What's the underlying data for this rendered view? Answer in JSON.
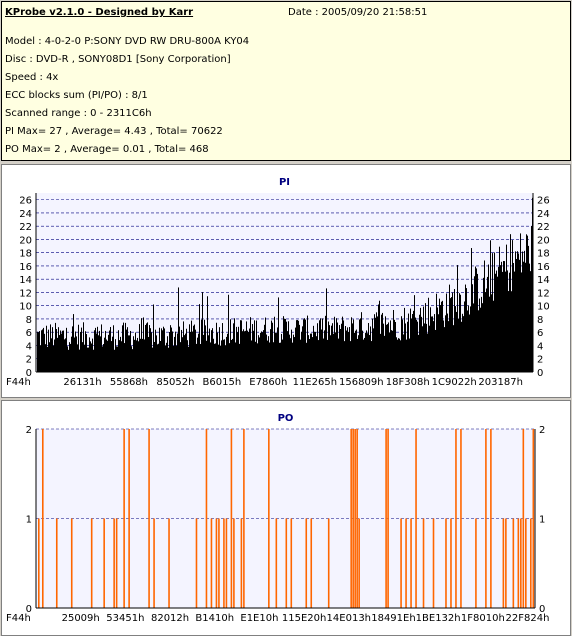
{
  "header": {
    "app_title": "KProbe v2.1.0 - Designed by Karr",
    "date": "Date : 2005/09/20 21:58:51",
    "lines": [
      "Model : 4-0-2-0 P:SONY    DVD RW DRU-800A  KY04",
      "Disc : DVD-R , SONY08D1 [Sony Corporation]",
      "Speed : 4x",
      "ECC blocks sum (PI/PO) : 8/1",
      "Scanned range : 0 - 2311C6h",
      "PI Max= 27 , Average= 4.43 , Total= 70622",
      "PO Max= 2 , Average= 0.01 , Total= 468"
    ]
  },
  "chart_data": [
    {
      "type": "bar",
      "title": "PI",
      "ylim": [
        0,
        27
      ],
      "yticks": [
        0,
        2,
        4,
        6,
        8,
        10,
        12,
        14,
        16,
        18,
        20,
        22,
        24,
        26
      ],
      "xticks": [
        "F44h",
        "26131h",
        "55868h",
        "85052h",
        "B6015h",
        "E7860h",
        "11E265h",
        "156809h",
        "18F308h",
        "1C9022h",
        "203187h"
      ],
      "bar_color": "#000000",
      "grid_color": "#000080",
      "profile": [
        {
          "x_frac": 0.0,
          "typical": 5,
          "spread": 3,
          "spike_max": 11
        },
        {
          "x_frac": 0.1,
          "typical": 5,
          "spread": 3,
          "spike_max": 12
        },
        {
          "x_frac": 0.25,
          "typical": 5,
          "spread": 3,
          "spike_max": 13
        },
        {
          "x_frac": 0.45,
          "typical": 6,
          "spread": 3,
          "spike_max": 12
        },
        {
          "x_frac": 0.6,
          "typical": 6,
          "spread": 3,
          "spike_max": 13
        },
        {
          "x_frac": 0.75,
          "typical": 7,
          "spread": 4,
          "spike_max": 15
        },
        {
          "x_frac": 0.85,
          "typical": 10,
          "spread": 5,
          "spike_max": 18
        },
        {
          "x_frac": 0.93,
          "typical": 14,
          "spread": 6,
          "spike_max": 23
        },
        {
          "x_frac": 1.0,
          "typical": 18,
          "spread": 6,
          "spike_max": 27
        }
      ]
    },
    {
      "type": "bar",
      "title": "PO",
      "ylim": [
        0,
        2
      ],
      "yticks": [
        0,
        1,
        2
      ],
      "xticks": [
        "F44h",
        "25009h",
        "53451h",
        "82012h",
        "B1410h",
        "E1E10h",
        "115E20h",
        "14E013h",
        "18491Eh",
        "1BE132h",
        "1F8010h",
        "22F824h"
      ],
      "bar_color": "#ff6600",
      "grid_color": "#000080",
      "bars": [
        {
          "x_frac": 0.004,
          "value": 1
        },
        {
          "x_frac": 0.012,
          "value": 2
        },
        {
          "x_frac": 0.04,
          "value": 1
        },
        {
          "x_frac": 0.07,
          "value": 1
        },
        {
          "x_frac": 0.11,
          "value": 1
        },
        {
          "x_frac": 0.135,
          "value": 1
        },
        {
          "x_frac": 0.16,
          "value": 1
        },
        {
          "x_frac": 0.155,
          "value": 1
        },
        {
          "x_frac": 0.175,
          "value": 2
        },
        {
          "x_frac": 0.185,
          "value": 2
        },
        {
          "x_frac": 0.225,
          "value": 2
        },
        {
          "x_frac": 0.235,
          "value": 1
        },
        {
          "x_frac": 0.265,
          "value": 1
        },
        {
          "x_frac": 0.32,
          "value": 1
        },
        {
          "x_frac": 0.34,
          "value": 2
        },
        {
          "x_frac": 0.35,
          "value": 1
        },
        {
          "x_frac": 0.36,
          "value": 1
        },
        {
          "x_frac": 0.365,
          "value": 1
        },
        {
          "x_frac": 0.375,
          "value": 1
        },
        {
          "x_frac": 0.38,
          "value": 1
        },
        {
          "x_frac": 0.39,
          "value": 2
        },
        {
          "x_frac": 0.395,
          "value": 1
        },
        {
          "x_frac": 0.41,
          "value": 1
        },
        {
          "x_frac": 0.415,
          "value": 2
        },
        {
          "x_frac": 0.465,
          "value": 2
        },
        {
          "x_frac": 0.48,
          "value": 1
        },
        {
          "x_frac": 0.5,
          "value": 1
        },
        {
          "x_frac": 0.51,
          "value": 1
        },
        {
          "x_frac": 0.54,
          "value": 1
        },
        {
          "x_frac": 0.55,
          "value": 1
        },
        {
          "x_frac": 0.585,
          "value": 1
        },
        {
          "x_frac": 0.63,
          "value": 2
        },
        {
          "x_frac": 0.634,
          "value": 2
        },
        {
          "x_frac": 0.638,
          "value": 2
        },
        {
          "x_frac": 0.642,
          "value": 2
        },
        {
          "x_frac": 0.646,
          "value": 1
        },
        {
          "x_frac": 0.7,
          "value": 2
        },
        {
          "x_frac": 0.704,
          "value": 2
        },
        {
          "x_frac": 0.73,
          "value": 1
        },
        {
          "x_frac": 0.74,
          "value": 1
        },
        {
          "x_frac": 0.75,
          "value": 1
        },
        {
          "x_frac": 0.76,
          "value": 2
        },
        {
          "x_frac": 0.775,
          "value": 1
        },
        {
          "x_frac": 0.795,
          "value": 1
        },
        {
          "x_frac": 0.82,
          "value": 1
        },
        {
          "x_frac": 0.83,
          "value": 1
        },
        {
          "x_frac": 0.84,
          "value": 2
        },
        {
          "x_frac": 0.85,
          "value": 2
        },
        {
          "x_frac": 0.88,
          "value": 1
        },
        {
          "x_frac": 0.9,
          "value": 2
        },
        {
          "x_frac": 0.91,
          "value": 2
        },
        {
          "x_frac": 0.935,
          "value": 1
        },
        {
          "x_frac": 0.94,
          "value": 1
        },
        {
          "x_frac": 0.955,
          "value": 1
        },
        {
          "x_frac": 0.965,
          "value": 1
        },
        {
          "x_frac": 0.97,
          "value": 1
        },
        {
          "x_frac": 0.975,
          "value": 2
        },
        {
          "x_frac": 0.98,
          "value": 1
        },
        {
          "x_frac": 0.99,
          "value": 1
        },
        {
          "x_frac": 0.995,
          "value": 2
        }
      ]
    }
  ]
}
